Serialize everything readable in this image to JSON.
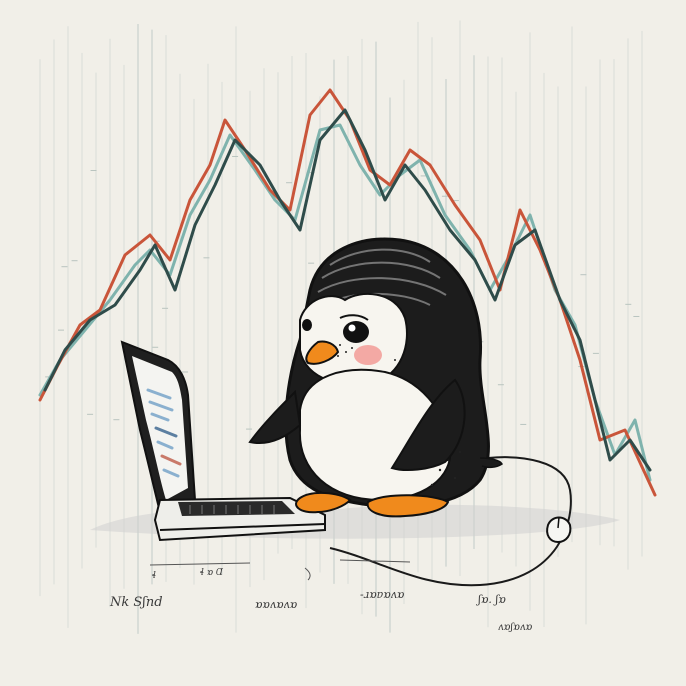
{
  "illustration": {
    "subject": "penguin-with-laptop",
    "background_color": "#f1efe8",
    "palette": {
      "ink": "#1a1a1a",
      "penguin_black": "#1c1c1c",
      "penguin_white": "#f7f5ef",
      "beak": "#f08a1c",
      "cheek": "#f3a9a4",
      "line_red": "#c9553a",
      "line_teal": "#7fb3ad",
      "line_dark": "#2f4c4a",
      "grid": "#cfd6d2",
      "shadow": "#cfcfcf"
    },
    "scribbles": [
      "Nk Sʃnd",
      "ɒɒʌɒʌɒ",
      "-ɹɒɐɒʌɒ",
      "ʃɒ. ʃɒ",
      "ʌɒʃɒʌɒ",
      "ɬ ɒ Ɑ",
      "ɬ"
    ]
  }
}
